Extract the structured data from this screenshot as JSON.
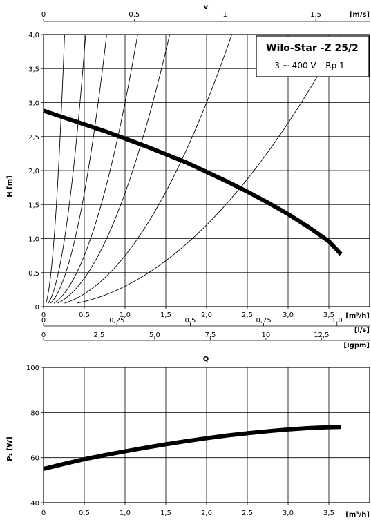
{
  "chart_data": [
    {
      "type": "line",
      "title": "Wilo-Star -Z 25/2",
      "subtitle": "3 ~ 400 V – Rp 1",
      "ylabel": "H [m]",
      "xlabel": "Q",
      "x_unit": "[m³/h]",
      "top_axis": {
        "label": "v",
        "unit": "[m/s]",
        "ticks": [
          0,
          0.5,
          1,
          1.5
        ]
      },
      "secondary_axes": [
        {
          "unit": "[l/s]",
          "ticks": [
            0,
            0.25,
            0.5,
            0.75,
            1.0
          ],
          "tick_labels": [
            "0",
            "0,25",
            "0,5",
            "0,75",
            "1,0"
          ]
        },
        {
          "unit": "[Igpm]",
          "ticks": [
            0,
            2.5,
            5.0,
            7.5,
            10,
            12.5
          ],
          "tick_labels": [
            "0",
            "2,5",
            "5,0",
            "7,5",
            "10",
            "12,5"
          ]
        }
      ],
      "top_tick_labels": [
        "0",
        "0,5",
        "1",
        "1,5"
      ],
      "xlim": [
        0,
        4
      ],
      "ylim": [
        0,
        4
      ],
      "x_ticks": [
        0,
        0.5,
        1.0,
        1.5,
        2.0,
        2.5,
        3.0,
        3.5
      ],
      "x_tick_labels": [
        "0",
        "0,5",
        "1,0",
        "1,5",
        "2,0",
        "2,5",
        "3,0",
        "3,5"
      ],
      "y_ticks": [
        0,
        0.5,
        1.0,
        1.5,
        2.0,
        2.5,
        3.0,
        3.5,
        4.0
      ],
      "y_tick_labels": [
        "0",
        "0,5",
        "1,0",
        "1,5",
        "2,0",
        "2,5",
        "3,0",
        "3,5",
        "4,0"
      ],
      "grid": true,
      "series": [
        {
          "x": [
            0,
            0.25,
            0.5,
            0.75,
            1.0,
            1.25,
            1.5,
            1.75,
            2.0,
            2.25,
            2.5,
            2.75,
            3.0,
            3.25,
            3.5,
            3.65
          ],
          "y": [
            2.88,
            2.78,
            2.68,
            2.58,
            2.47,
            2.36,
            2.24,
            2.12,
            1.98,
            1.84,
            1.69,
            1.53,
            1.36,
            1.17,
            0.96,
            0.77
          ]
        }
      ],
      "system_curves_k": [
        60,
        15,
        6.67,
        3.0,
        1.67,
        0.75,
        0.3
      ]
    },
    {
      "type": "line",
      "ylabel": "P₁ [W]",
      "x_unit": "[m³/h]",
      "xlim": [
        0,
        4
      ],
      "ylim": [
        40,
        100
      ],
      "x_ticks": [
        0,
        0.5,
        1.0,
        1.5,
        2.0,
        2.5,
        3.0,
        3.5
      ],
      "x_tick_labels": [
        "0",
        "0,5",
        "1,0",
        "1,5",
        "2,0",
        "2,5",
        "3,0",
        "3,5"
      ],
      "y_ticks": [
        40,
        60,
        80,
        100
      ],
      "y_tick_labels": [
        "40",
        "60",
        "80",
        "100"
      ],
      "grid": true,
      "series": [
        {
          "x": [
            0,
            0.25,
            0.5,
            0.75,
            1.0,
            1.25,
            1.5,
            1.75,
            2.0,
            2.25,
            2.5,
            2.75,
            3.0,
            3.25,
            3.5,
            3.65
          ],
          "y": [
            55.0,
            57.2,
            59.3,
            61.1,
            62.8,
            64.4,
            65.9,
            67.3,
            68.6,
            69.8,
            70.8,
            71.7,
            72.5,
            73.1,
            73.5,
            73.6
          ]
        }
      ]
    }
  ]
}
